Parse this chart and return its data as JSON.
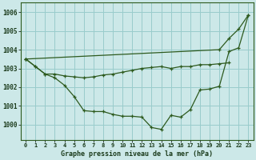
{
  "title": "Graphe pression niveau de la mer (hPa)",
  "background_color": "#cce8e8",
  "grid_color": "#99cccc",
  "line_color": "#2d5a1e",
  "xlim": [
    -0.5,
    23.5
  ],
  "ylim": [
    999.2,
    1006.5
  ],
  "yticks": [
    1000,
    1001,
    1002,
    1003,
    1004,
    1005,
    1006
  ],
  "xticks": [
    0,
    1,
    2,
    3,
    4,
    5,
    6,
    7,
    8,
    9,
    10,
    11,
    12,
    13,
    14,
    15,
    16,
    17,
    18,
    19,
    20,
    21,
    22,
    23
  ],
  "series_flat": [
    1003.5,
    1003.1,
    1002.7,
    1002.7,
    1002.6,
    1002.55,
    1002.5,
    1002.55,
    1002.65,
    1002.7,
    1002.8,
    1002.9,
    1003.0,
    1003.05,
    1003.1,
    1003.0,
    1003.1,
    1003.1,
    1003.2,
    1003.2,
    1003.25,
    1003.3,
    null,
    null
  ],
  "series_dip": [
    1003.5,
    1003.1,
    1002.7,
    1002.5,
    1002.1,
    1001.5,
    1000.75,
    1000.7,
    1000.7,
    1000.55,
    1000.45,
    1000.45,
    1000.4,
    999.85,
    999.75,
    1000.5,
    1000.4,
    1000.8,
    1001.85,
    1001.9,
    1002.05,
    1003.9,
    1004.1,
    1005.85
  ],
  "series_rise": [
    1003.5,
    null,
    null,
    null,
    null,
    null,
    null,
    null,
    null,
    null,
    null,
    null,
    null,
    null,
    null,
    null,
    null,
    null,
    null,
    null,
    1004.0,
    1004.6,
    1005.1,
    1005.85
  ]
}
